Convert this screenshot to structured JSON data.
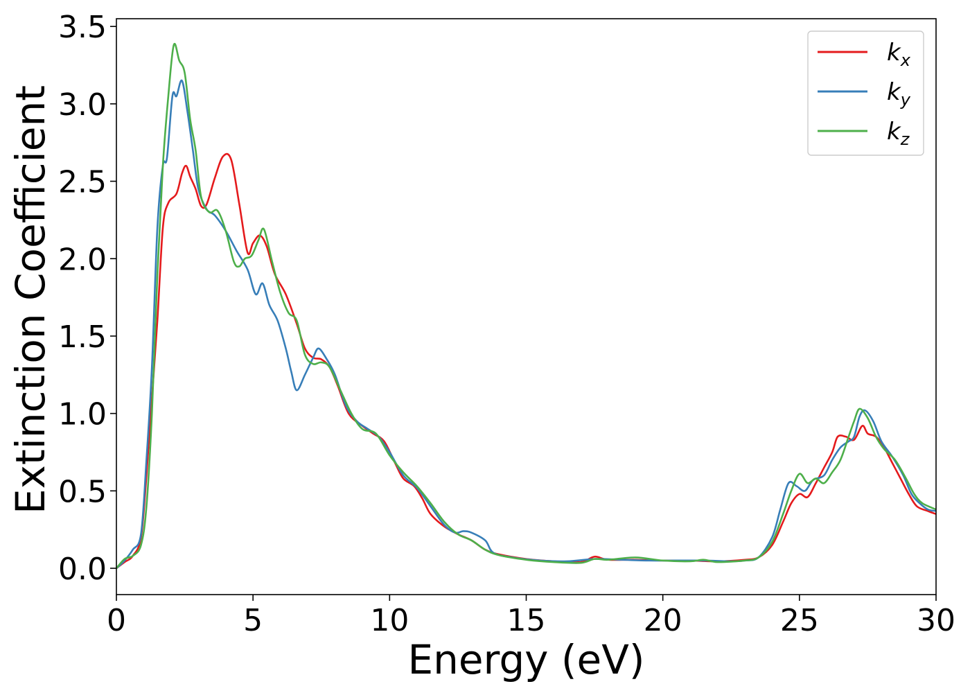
{
  "chart_data": {
    "type": "line",
    "title": "",
    "xlabel": "Energy (eV)",
    "ylabel": "Extinction Coefficient",
    "xlim": [
      0,
      30
    ],
    "ylim": [
      -0.17,
      3.55
    ],
    "xticks": [
      0,
      5,
      10,
      15,
      20,
      25,
      30
    ],
    "yticks": [
      0.0,
      0.5,
      1.0,
      1.5,
      2.0,
      2.5,
      3.0,
      3.5
    ],
    "xtick_labels": [
      "0",
      "5",
      "10",
      "15",
      "20",
      "25",
      "30"
    ],
    "ytick_labels": [
      "0.0",
      "0.5",
      "1.0",
      "1.5",
      "2.0",
      "2.5",
      "3.0",
      "3.5"
    ],
    "grid": false,
    "legend_position": "top-right",
    "series": [
      {
        "base": "k",
        "sub": "x",
        "color": "#e41a1c",
        "points": [
          [
            0,
            0.0
          ],
          [
            0.3,
            0.04
          ],
          [
            0.6,
            0.08
          ],
          [
            0.9,
            0.2
          ],
          [
            1.1,
            0.6
          ],
          [
            1.3,
            1.1
          ],
          [
            1.5,
            1.6
          ],
          [
            1.7,
            2.2
          ],
          [
            1.9,
            2.36
          ],
          [
            2.2,
            2.42
          ],
          [
            2.4,
            2.55
          ],
          [
            2.55,
            2.6
          ],
          [
            2.7,
            2.53
          ],
          [
            2.9,
            2.45
          ],
          [
            3.1,
            2.34
          ],
          [
            3.3,
            2.35
          ],
          [
            3.6,
            2.52
          ],
          [
            3.9,
            2.66
          ],
          [
            4.2,
            2.64
          ],
          [
            4.5,
            2.35
          ],
          [
            4.8,
            2.04
          ],
          [
            5.0,
            2.1
          ],
          [
            5.25,
            2.15
          ],
          [
            5.5,
            2.08
          ],
          [
            5.8,
            1.9
          ],
          [
            6.2,
            1.77
          ],
          [
            6.6,
            1.58
          ],
          [
            6.9,
            1.42
          ],
          [
            7.2,
            1.36
          ],
          [
            7.5,
            1.35
          ],
          [
            7.8,
            1.3
          ],
          [
            8.1,
            1.18
          ],
          [
            8.5,
            1.0
          ],
          [
            9.0,
            0.92
          ],
          [
            9.4,
            0.87
          ],
          [
            9.8,
            0.82
          ],
          [
            10.2,
            0.68
          ],
          [
            10.5,
            0.58
          ],
          [
            10.9,
            0.53
          ],
          [
            11.2,
            0.45
          ],
          [
            11.5,
            0.35
          ],
          [
            12.0,
            0.27
          ],
          [
            12.5,
            0.22
          ],
          [
            13.0,
            0.18
          ],
          [
            13.5,
            0.12
          ],
          [
            14.0,
            0.09
          ],
          [
            15.0,
            0.06
          ],
          [
            16.0,
            0.045
          ],
          [
            17.0,
            0.04
          ],
          [
            17.5,
            0.075
          ],
          [
            18.0,
            0.055
          ],
          [
            19.0,
            0.055
          ],
          [
            20.0,
            0.05
          ],
          [
            21.0,
            0.05
          ],
          [
            22.0,
            0.045
          ],
          [
            23.0,
            0.055
          ],
          [
            23.5,
            0.07
          ],
          [
            24.0,
            0.15
          ],
          [
            24.4,
            0.3
          ],
          [
            24.7,
            0.42
          ],
          [
            25.0,
            0.48
          ],
          [
            25.3,
            0.46
          ],
          [
            25.6,
            0.55
          ],
          [
            25.9,
            0.65
          ],
          [
            26.2,
            0.75
          ],
          [
            26.4,
            0.85
          ],
          [
            26.7,
            0.85
          ],
          [
            27.0,
            0.83
          ],
          [
            27.3,
            0.92
          ],
          [
            27.5,
            0.87
          ],
          [
            27.8,
            0.85
          ],
          [
            28.1,
            0.78
          ],
          [
            28.4,
            0.68
          ],
          [
            28.7,
            0.58
          ],
          [
            29.0,
            0.48
          ],
          [
            29.3,
            0.4
          ],
          [
            29.7,
            0.37
          ],
          [
            30.0,
            0.35
          ]
        ]
      },
      {
        "base": "k",
        "sub": "y",
        "color": "#377eb8",
        "points": [
          [
            0,
            0.0
          ],
          [
            0.3,
            0.05
          ],
          [
            0.6,
            0.12
          ],
          [
            0.9,
            0.22
          ],
          [
            1.1,
            0.7
          ],
          [
            1.3,
            1.3
          ],
          [
            1.5,
            2.2
          ],
          [
            1.7,
            2.6
          ],
          [
            1.85,
            2.65
          ],
          [
            2.05,
            3.05
          ],
          [
            2.2,
            3.05
          ],
          [
            2.4,
            3.15
          ],
          [
            2.6,
            2.95
          ],
          [
            2.8,
            2.7
          ],
          [
            3.0,
            2.45
          ],
          [
            3.3,
            2.32
          ],
          [
            3.6,
            2.28
          ],
          [
            4.0,
            2.18
          ],
          [
            4.4,
            2.05
          ],
          [
            4.8,
            1.93
          ],
          [
            5.1,
            1.77
          ],
          [
            5.35,
            1.84
          ],
          [
            5.6,
            1.7
          ],
          [
            5.9,
            1.6
          ],
          [
            6.2,
            1.42
          ],
          [
            6.4,
            1.27
          ],
          [
            6.6,
            1.15
          ],
          [
            6.9,
            1.25
          ],
          [
            7.2,
            1.36
          ],
          [
            7.4,
            1.42
          ],
          [
            7.7,
            1.35
          ],
          [
            8.0,
            1.25
          ],
          [
            8.4,
            1.05
          ],
          [
            8.8,
            0.95
          ],
          [
            9.2,
            0.9
          ],
          [
            9.6,
            0.85
          ],
          [
            10.0,
            0.75
          ],
          [
            10.5,
            0.6
          ],
          [
            11.0,
            0.52
          ],
          [
            11.5,
            0.4
          ],
          [
            12.0,
            0.28
          ],
          [
            12.4,
            0.23
          ],
          [
            12.7,
            0.24
          ],
          [
            13.0,
            0.23
          ],
          [
            13.5,
            0.18
          ],
          [
            13.8,
            0.1
          ],
          [
            14.5,
            0.07
          ],
          [
            15.5,
            0.05
          ],
          [
            16.5,
            0.045
          ],
          [
            17.5,
            0.06
          ],
          [
            18.5,
            0.055
          ],
          [
            19.5,
            0.05
          ],
          [
            20.5,
            0.05
          ],
          [
            21.5,
            0.05
          ],
          [
            22.5,
            0.045
          ],
          [
            23.0,
            0.05
          ],
          [
            23.5,
            0.07
          ],
          [
            24.0,
            0.2
          ],
          [
            24.3,
            0.38
          ],
          [
            24.6,
            0.55
          ],
          [
            24.9,
            0.53
          ],
          [
            25.2,
            0.5
          ],
          [
            25.5,
            0.57
          ],
          [
            25.9,
            0.6
          ],
          [
            26.2,
            0.7
          ],
          [
            26.5,
            0.78
          ],
          [
            26.8,
            0.82
          ],
          [
            27.0,
            0.85
          ],
          [
            27.2,
            0.98
          ],
          [
            27.4,
            1.02
          ],
          [
            27.7,
            0.95
          ],
          [
            28.0,
            0.82
          ],
          [
            28.4,
            0.72
          ],
          [
            28.8,
            0.6
          ],
          [
            29.1,
            0.48
          ],
          [
            29.4,
            0.42
          ],
          [
            29.7,
            0.38
          ],
          [
            30.0,
            0.37
          ]
        ]
      },
      {
        "base": "k",
        "sub": "z",
        "color": "#4daf4a",
        "points": [
          [
            0,
            0.0
          ],
          [
            0.3,
            0.06
          ],
          [
            0.6,
            0.08
          ],
          [
            0.9,
            0.15
          ],
          [
            1.1,
            0.4
          ],
          [
            1.3,
            1.0
          ],
          [
            1.5,
            1.9
          ],
          [
            1.7,
            2.6
          ],
          [
            1.9,
            3.05
          ],
          [
            2.1,
            3.38
          ],
          [
            2.3,
            3.28
          ],
          [
            2.5,
            3.2
          ],
          [
            2.7,
            2.9
          ],
          [
            2.9,
            2.7
          ],
          [
            3.1,
            2.4
          ],
          [
            3.4,
            2.3
          ],
          [
            3.7,
            2.31
          ],
          [
            4.0,
            2.18
          ],
          [
            4.3,
            1.98
          ],
          [
            4.5,
            1.95
          ],
          [
            4.7,
            2.0
          ],
          [
            4.95,
            2.02
          ],
          [
            5.2,
            2.12
          ],
          [
            5.4,
            2.19
          ],
          [
            5.7,
            1.98
          ],
          [
            6.0,
            1.78
          ],
          [
            6.3,
            1.65
          ],
          [
            6.6,
            1.6
          ],
          [
            6.9,
            1.38
          ],
          [
            7.2,
            1.32
          ],
          [
            7.5,
            1.33
          ],
          [
            7.8,
            1.3
          ],
          [
            8.2,
            1.15
          ],
          [
            8.6,
            1.0
          ],
          [
            9.0,
            0.9
          ],
          [
            9.5,
            0.87
          ],
          [
            10.0,
            0.73
          ],
          [
            10.5,
            0.62
          ],
          [
            11.0,
            0.53
          ],
          [
            11.5,
            0.42
          ],
          [
            12.0,
            0.3
          ],
          [
            12.5,
            0.22
          ],
          [
            13.0,
            0.18
          ],
          [
            13.5,
            0.12
          ],
          [
            14.0,
            0.085
          ],
          [
            15.0,
            0.055
          ],
          [
            16.0,
            0.04
          ],
          [
            17.0,
            0.035
          ],
          [
            17.5,
            0.06
          ],
          [
            18.0,
            0.055
          ],
          [
            19.0,
            0.07
          ],
          [
            20.0,
            0.05
          ],
          [
            21.0,
            0.045
          ],
          [
            21.5,
            0.055
          ],
          [
            22.0,
            0.04
          ],
          [
            23.0,
            0.05
          ],
          [
            23.5,
            0.07
          ],
          [
            24.0,
            0.17
          ],
          [
            24.4,
            0.35
          ],
          [
            24.7,
            0.5
          ],
          [
            25.0,
            0.61
          ],
          [
            25.3,
            0.55
          ],
          [
            25.6,
            0.58
          ],
          [
            25.9,
            0.55
          ],
          [
            26.2,
            0.62
          ],
          [
            26.5,
            0.7
          ],
          [
            26.8,
            0.85
          ],
          [
            27.0,
            0.95
          ],
          [
            27.2,
            1.03
          ],
          [
            27.5,
            0.97
          ],
          [
            27.8,
            0.85
          ],
          [
            28.1,
            0.77
          ],
          [
            28.5,
            0.7
          ],
          [
            28.9,
            0.58
          ],
          [
            29.2,
            0.48
          ],
          [
            29.5,
            0.42
          ],
          [
            30.0,
            0.38
          ]
        ]
      }
    ]
  }
}
